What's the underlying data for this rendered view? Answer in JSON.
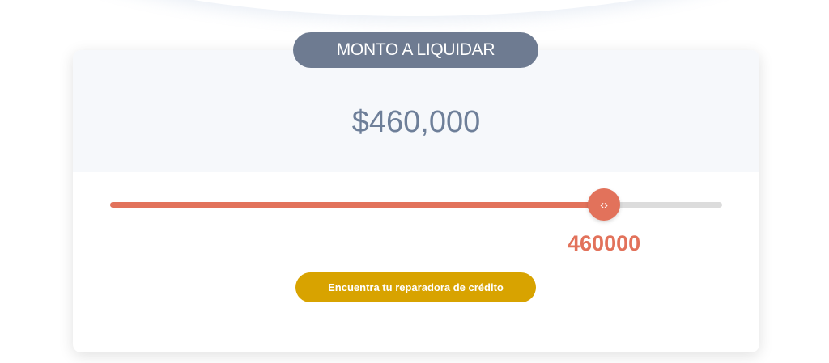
{
  "header": {
    "label": "MONTO A LIQUIDAR"
  },
  "amount": {
    "display": "$460,000"
  },
  "slider": {
    "value": "460000",
    "fill_fraction": 0.807,
    "color": "#e2725b",
    "thumb_icon": "code-arrows-icon",
    "thumb_glyph": "‹›"
  },
  "cta": {
    "label": "Encuentra tu reparadora de crédito",
    "color": "#d8a300"
  }
}
